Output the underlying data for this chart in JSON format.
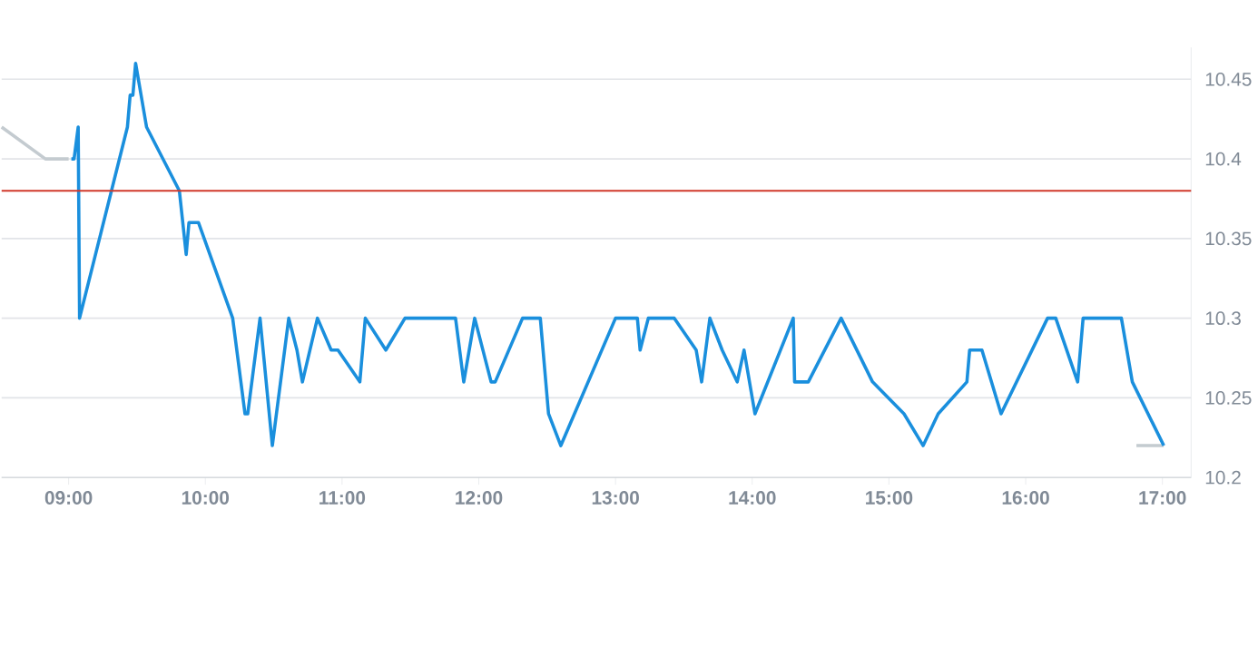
{
  "chart_data": {
    "type": "line",
    "x": [
      9.02,
      9.04,
      9.07,
      9.08,
      9.43,
      9.45,
      9.47,
      9.49,
      9.57,
      9.81,
      9.86,
      9.88,
      9.95,
      10.2,
      10.29,
      10.31,
      10.4,
      10.49,
      10.61,
      10.67,
      10.71,
      10.82,
      10.92,
      10.97,
      11.13,
      11.17,
      11.32,
      11.46,
      11.83,
      11.89,
      11.97,
      12.09,
      12.12,
      12.32,
      12.45,
      12.51,
      12.6,
      13.0,
      13.16,
      13.18,
      13.24,
      13.43,
      13.59,
      13.63,
      13.69,
      13.78,
      13.89,
      13.94,
      14.02,
      14.3,
      14.31,
      14.41,
      14.65,
      14.88,
      15.11,
      15.25,
      15.36,
      15.57,
      15.59,
      15.68,
      15.82,
      16.16,
      16.22,
      16.38,
      16.42,
      16.7,
      16.78,
      17.01
    ],
    "series": [
      {
        "color": "#c4cbd0",
        "x": [
          8.51,
          8.83,
          9.0,
          13.0,
          16.81,
          17.01
        ],
        "values": [
          10.42,
          10.4,
          10.4,
          null,
          10.22,
          10.22
        ]
      },
      {
        "color": "#1a8fdd",
        "values": [
          10.4,
          10.4,
          10.42,
          10.3,
          10.42,
          10.44,
          10.44,
          10.46,
          10.42,
          10.38,
          10.34,
          10.36,
          10.36,
          10.3,
          10.24,
          10.24,
          10.3,
          10.22,
          10.3,
          10.28,
          10.26,
          10.3,
          10.28,
          10.28,
          10.26,
          10.3,
          10.28,
          10.3,
          10.3,
          10.26,
          10.3,
          10.26,
          10.26,
          10.3,
          10.3,
          10.24,
          10.22,
          10.3,
          10.3,
          10.28,
          10.3,
          10.3,
          10.28,
          10.26,
          10.3,
          10.28,
          10.26,
          10.28,
          10.24,
          10.3,
          10.26,
          10.26,
          10.3,
          10.26,
          10.24,
          10.22,
          10.24,
          10.26,
          10.28,
          10.28,
          10.24,
          10.3,
          10.3,
          10.26,
          10.3,
          10.3,
          10.26,
          10.22
        ]
      }
    ],
    "xlim": [
      8.51,
      17.21
    ],
    "ylim": [
      10.2,
      10.47
    ],
    "xticks": [
      {
        "value": 9,
        "label": "09:00"
      },
      {
        "value": 10,
        "label": "10:00"
      },
      {
        "value": 11,
        "label": "11:00"
      },
      {
        "value": 12,
        "label": "12:00"
      },
      {
        "value": 13,
        "label": "13:00"
      },
      {
        "value": 14,
        "label": "14:00"
      },
      {
        "value": 15,
        "label": "15:00"
      },
      {
        "value": 16,
        "label": "16:00"
      },
      {
        "value": 17,
        "label": "17:00"
      }
    ],
    "yticks": [
      10.2,
      10.25,
      10.3,
      10.35,
      10.4,
      10.45
    ],
    "ref_lines": [
      {
        "axis": "y",
        "value": 10.38,
        "color": "#d0392b"
      }
    ],
    "grid": "y",
    "marker": "none",
    "line_style": "solid"
  }
}
